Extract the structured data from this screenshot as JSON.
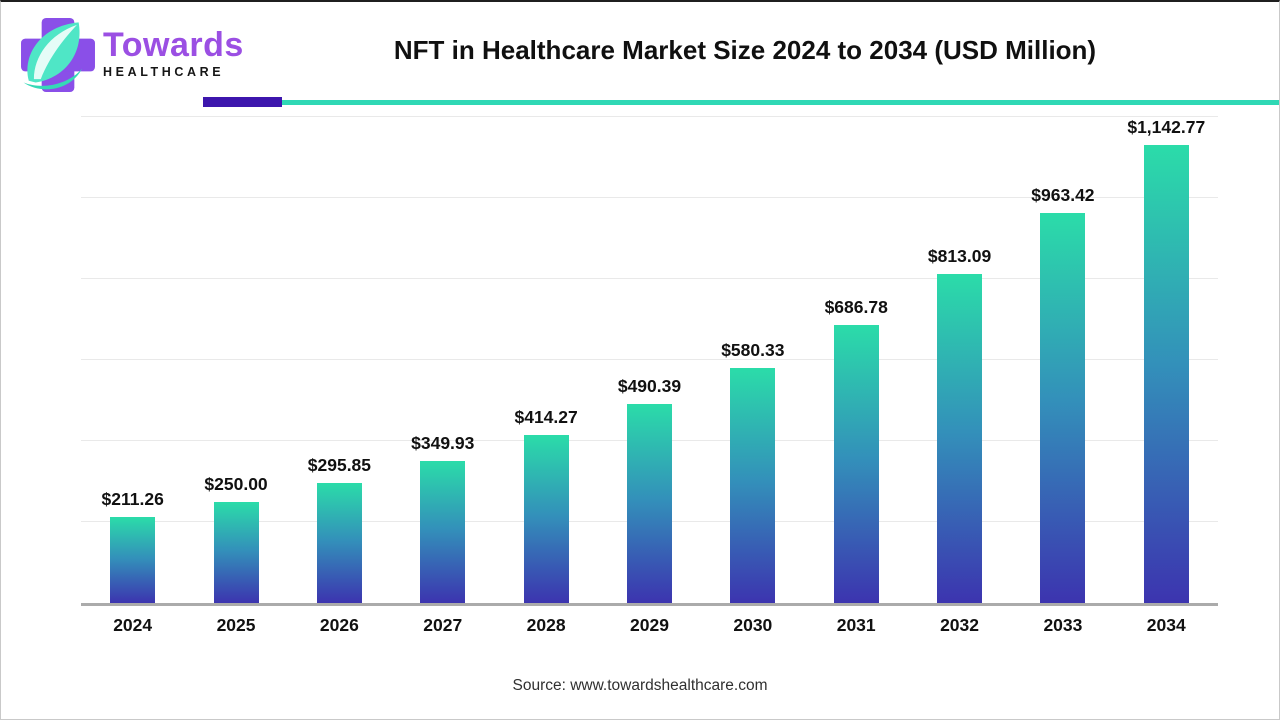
{
  "header": {
    "brand_name": "Towards",
    "brand_sub": "HEALTHCARE",
    "title": "NFT in Healthcare Market Size 2024 to 2034 (USD Million)"
  },
  "footer": {
    "source": "Source: www.towardshealthcare.com"
  },
  "colors": {
    "bar_top": "#2bdca9",
    "bar_mid": "#3390ba",
    "bar_bottom": "#3c34af",
    "underline_purple": "#3d16ad",
    "underline_teal": "#2fd8b5",
    "logo_purple": "#8a4fe8",
    "logo_leaf": "#4fe6c6"
  },
  "chart_data": {
    "type": "bar",
    "title": "NFT in Healthcare Market Size 2024 to 2034 (USD Million)",
    "categories": [
      "2024",
      "2025",
      "2026",
      "2027",
      "2028",
      "2029",
      "2030",
      "2031",
      "2032",
      "2033",
      "2034"
    ],
    "values": [
      211.26,
      250.0,
      295.85,
      349.93,
      414.27,
      490.39,
      580.33,
      686.78,
      813.09,
      963.42,
      1142.77
    ],
    "value_labels": [
      "$211.26",
      "$250.00",
      "$295.85",
      "$349.93",
      "$414.27",
      "$490.39",
      "$580.33",
      "$686.78",
      "$813.09",
      "$963.42",
      "$1,142.77"
    ],
    "xlabel": "",
    "ylabel": "",
    "ylim": [
      0,
      1200
    ],
    "gridline_step": 200,
    "grid": true,
    "legend": false,
    "y_axis_labels_visible": false
  }
}
